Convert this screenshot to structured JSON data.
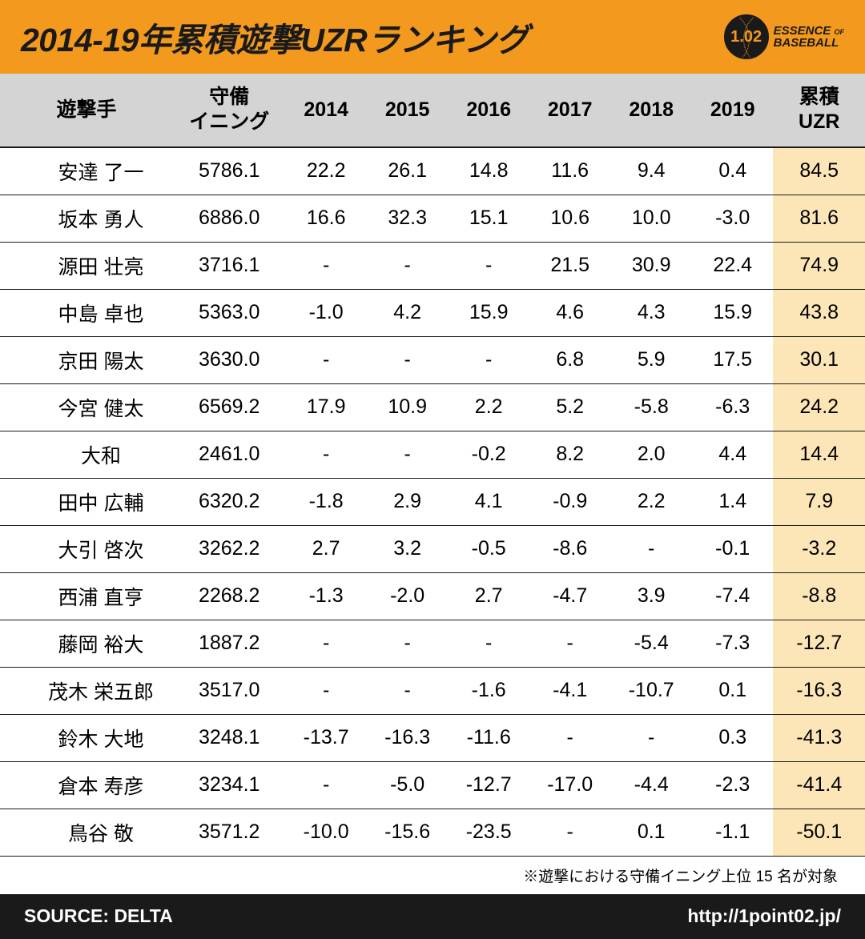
{
  "header": {
    "title": "2014-19年累積遊撃UZRランキング",
    "logo_number": "1.02",
    "logo_line1a": "ESSENCE",
    "logo_line1b": "OF",
    "logo_line2": "BASEBALL"
  },
  "colors": {
    "header_bg": "#f39a1e",
    "thead_bg": "#d4d4d4",
    "total_col_bg": "#fce6b8",
    "footer_bg": "#1a1a1a",
    "footer_text": "#ffffff",
    "border": "#1a1a1a"
  },
  "table": {
    "type": "table",
    "columns": [
      {
        "key": "name",
        "label": "遊撃手",
        "width": "20%"
      },
      {
        "key": "innings",
        "label": "守備\nイニング",
        "width": "13%"
      },
      {
        "key": "y2014",
        "label": "2014",
        "width": "9.4%"
      },
      {
        "key": "y2015",
        "label": "2015",
        "width": "9.4%"
      },
      {
        "key": "y2016",
        "label": "2016",
        "width": "9.4%"
      },
      {
        "key": "y2017",
        "label": "2017",
        "width": "9.4%"
      },
      {
        "key": "y2018",
        "label": "2018",
        "width": "9.4%"
      },
      {
        "key": "y2019",
        "label": "2019",
        "width": "9.4%"
      },
      {
        "key": "total",
        "label": "累積\nUZR",
        "width": "10.6%",
        "highlight": true
      }
    ],
    "rows": [
      {
        "name": "安達 了一",
        "innings": "5786.1",
        "y2014": "22.2",
        "y2015": "26.1",
        "y2016": "14.8",
        "y2017": "11.6",
        "y2018": "9.4",
        "y2019": "0.4",
        "total": "84.5"
      },
      {
        "name": "坂本 勇人",
        "innings": "6886.0",
        "y2014": "16.6",
        "y2015": "32.3",
        "y2016": "15.1",
        "y2017": "10.6",
        "y2018": "10.0",
        "y2019": "-3.0",
        "total": "81.6"
      },
      {
        "name": "源田 壮亮",
        "innings": "3716.1",
        "y2014": "-",
        "y2015": "-",
        "y2016": "-",
        "y2017": "21.5",
        "y2018": "30.9",
        "y2019": "22.4",
        "total": "74.9"
      },
      {
        "name": "中島 卓也",
        "innings": "5363.0",
        "y2014": "-1.0",
        "y2015": "4.2",
        "y2016": "15.9",
        "y2017": "4.6",
        "y2018": "4.3",
        "y2019": "15.9",
        "total": "43.8"
      },
      {
        "name": "京田 陽太",
        "innings": "3630.0",
        "y2014": "-",
        "y2015": "-",
        "y2016": "-",
        "y2017": "6.8",
        "y2018": "5.9",
        "y2019": "17.5",
        "total": "30.1"
      },
      {
        "name": "今宮 健太",
        "innings": "6569.2",
        "y2014": "17.9",
        "y2015": "10.9",
        "y2016": "2.2",
        "y2017": "5.2",
        "y2018": "-5.8",
        "y2019": "-6.3",
        "total": "24.2"
      },
      {
        "name": "大和",
        "innings": "2461.0",
        "y2014": "-",
        "y2015": "-",
        "y2016": "-0.2",
        "y2017": "8.2",
        "y2018": "2.0",
        "y2019": "4.4",
        "total": "14.4"
      },
      {
        "name": "田中 広輔",
        "innings": "6320.2",
        "y2014": "-1.8",
        "y2015": "2.9",
        "y2016": "4.1",
        "y2017": "-0.9",
        "y2018": "2.2",
        "y2019": "1.4",
        "total": "7.9"
      },
      {
        "name": "大引 啓次",
        "innings": "3262.2",
        "y2014": "2.7",
        "y2015": "3.2",
        "y2016": "-0.5",
        "y2017": "-8.6",
        "y2018": "-",
        "y2019": "-0.1",
        "total": "-3.2"
      },
      {
        "name": "西浦 直亨",
        "innings": "2268.2",
        "y2014": "-1.3",
        "y2015": "-2.0",
        "y2016": "2.7",
        "y2017": "-4.7",
        "y2018": "3.9",
        "y2019": "-7.4",
        "total": "-8.8"
      },
      {
        "name": "藤岡 裕大",
        "innings": "1887.2",
        "y2014": "-",
        "y2015": "-",
        "y2016": "-",
        "y2017": "-",
        "y2018": "-5.4",
        "y2019": "-7.3",
        "total": "-12.7"
      },
      {
        "name": "茂木 栄五郎",
        "innings": "3517.0",
        "y2014": "-",
        "y2015": "-",
        "y2016": "-1.6",
        "y2017": "-4.1",
        "y2018": "-10.7",
        "y2019": "0.1",
        "total": "-16.3"
      },
      {
        "name": "鈴木 大地",
        "innings": "3248.1",
        "y2014": "-13.7",
        "y2015": "-16.3",
        "y2016": "-11.6",
        "y2017": "-",
        "y2018": "-",
        "y2019": "0.3",
        "total": "-41.3"
      },
      {
        "name": "倉本 寿彦",
        "innings": "3234.1",
        "y2014": "-",
        "y2015": "-5.0",
        "y2016": "-12.7",
        "y2017": "-17.0",
        "y2018": "-4.4",
        "y2019": "-2.3",
        "total": "-41.4"
      },
      {
        "name": "鳥谷 敬",
        "innings": "3571.2",
        "y2014": "-10.0",
        "y2015": "-15.6",
        "y2016": "-23.5",
        "y2017": "-",
        "y2018": "0.1",
        "y2019": "-1.1",
        "total": "-50.1"
      }
    ]
  },
  "note": "※遊撃における守備イニング上位 15 名が対象",
  "footer": {
    "source": "SOURCE: DELTA",
    "url": "http://1point02.jp/"
  }
}
